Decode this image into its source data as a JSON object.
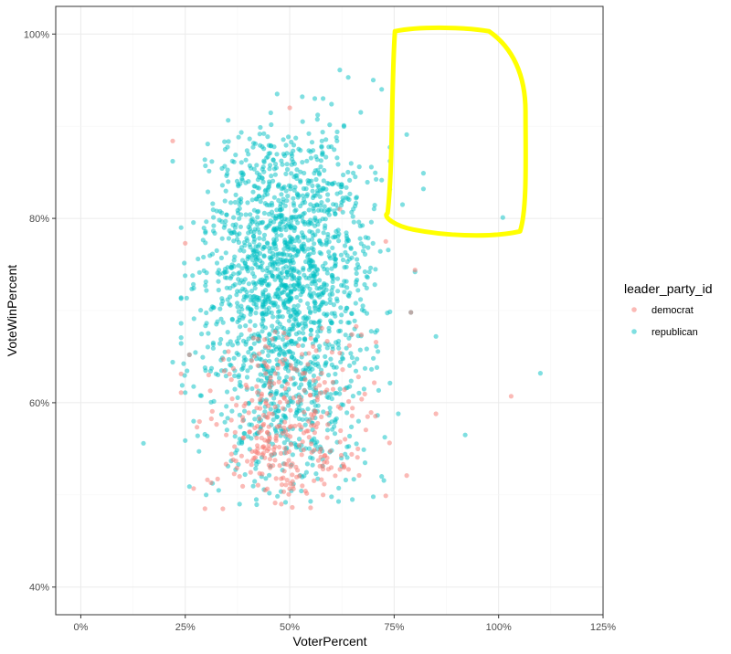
{
  "chart_data": {
    "type": "scatter",
    "xlabel": "VoterPercent",
    "ylabel": "VoteWinPercent",
    "xlim": [
      -0.06,
      1.25
    ],
    "ylim": [
      0.37,
      1.03
    ],
    "x_ticks": [
      0,
      0.25,
      0.5,
      0.75,
      1.0,
      1.25
    ],
    "x_tick_labels": [
      "0%",
      "25%",
      "50%",
      "75%",
      "100%",
      "125%"
    ],
    "y_ticks": [
      0.4,
      0.6,
      0.8,
      1.0
    ],
    "y_tick_labels": [
      "40%",
      "60%",
      "80%",
      "100%"
    ],
    "grid": true,
    "legend": {
      "title": "leader_party_id",
      "position": "right",
      "entries": [
        {
          "label": "democrat",
          "color": "#F8766D"
        },
        {
          "label": "republican",
          "color": "#00BFC4"
        }
      ]
    },
    "series": [
      {
        "name": "republican",
        "color": "#00BFC4",
        "points": [
          [
            0.15,
            0.556
          ],
          [
            0.22,
            0.862
          ],
          [
            0.22,
            0.644
          ],
          [
            0.92,
            0.565
          ],
          [
            1.1,
            0.632
          ],
          [
            1.01,
            0.801
          ],
          [
            0.82,
            0.832
          ],
          [
            0.82,
            0.849
          ],
          [
            0.78,
            0.891
          ],
          [
            0.77,
            0.815
          ],
          [
            0.62,
            0.961
          ],
          [
            0.64,
            0.953
          ],
          [
            0.7,
            0.95
          ],
          [
            0.72,
            0.94
          ],
          [
            0.47,
            0.935
          ],
          [
            0.53,
            0.932
          ],
          [
            0.56,
            0.93
          ],
          [
            0.58,
            0.93
          ],
          [
            0.6,
            0.924
          ],
          [
            0.67,
            0.915
          ],
          [
            0.8,
            0.742
          ],
          [
            0.85,
            0.672
          ],
          [
            0.76,
            0.588
          ],
          [
            0.79,
            0.698
          ],
          [
            0.24,
            0.714
          ],
          [
            0.25,
            0.611
          ],
          [
            0.26,
            0.652
          ],
          [
            0.25,
            0.559
          ],
          [
            0.27,
            0.58
          ],
          [
            0.26,
            0.509
          ],
          [
            0.3,
            0.5
          ],
          [
            0.33,
            0.505
          ],
          [
            0.38,
            0.49
          ],
          [
            0.42,
            0.495
          ],
          [
            0.49,
            0.492
          ],
          [
            0.55,
            0.493
          ],
          [
            0.6,
            0.498
          ],
          [
            0.65,
            0.495
          ],
          [
            0.7,
            0.498
          ],
          [
            0.72,
            0.52
          ]
        ],
        "cluster": {
          "x_mean": 0.49,
          "x_sd": 0.095,
          "y_min": 0.49,
          "y_max": 0.92,
          "y_mode": 0.76,
          "count": 1800
        }
      },
      {
        "name": "democrat",
        "color": "#F8766D",
        "points": [
          [
            0.22,
            0.884
          ],
          [
            0.25,
            0.773
          ],
          [
            0.24,
            0.611
          ],
          [
            0.26,
            0.652
          ],
          [
            0.27,
            0.507
          ],
          [
            1.03,
            0.607
          ],
          [
            0.85,
            0.588
          ],
          [
            0.78,
            0.521
          ],
          [
            0.73,
            0.499
          ],
          [
            0.73,
            0.775
          ],
          [
            0.8,
            0.744
          ],
          [
            0.79,
            0.698
          ],
          [
            0.5,
            0.92
          ],
          [
            0.62,
            0.81
          ],
          [
            0.34,
            0.485
          ],
          [
            0.48,
            0.49
          ],
          [
            0.55,
            0.486
          ],
          [
            0.58,
            0.5
          ],
          [
            0.38,
            0.52
          ],
          [
            0.45,
            0.55
          ]
        ],
        "cluster": {
          "x_mean": 0.49,
          "x_sd": 0.085,
          "y_min": 0.49,
          "y_max": 0.7,
          "y_mode": 0.55,
          "count": 320
        }
      }
    ],
    "annotations": [
      {
        "type": "freehand-box",
        "color": "#FFFF00",
        "x_range": [
          0.73,
          1.06
        ],
        "y_range": [
          0.78,
          1.005
        ]
      }
    ]
  }
}
